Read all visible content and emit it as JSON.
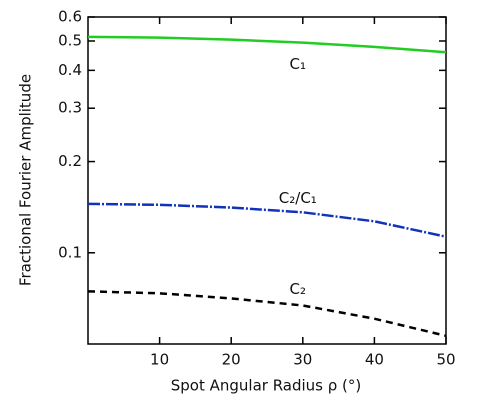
{
  "chart_data": {
    "type": "line",
    "xlabel": "Spot Angular Radius ρ (°)",
    "ylabel": "Fractional Fourier Amplitude",
    "x": [
      0,
      10,
      20,
      30,
      40,
      50
    ],
    "series": [
      {
        "name": "C₁",
        "color": "#22cc22",
        "dash": "solid",
        "values": [
          0.516,
          0.513,
          0.505,
          0.494,
          0.478,
          0.459
        ]
      },
      {
        "name": "C₂/C₁",
        "color": "#1133bb",
        "dash": "dashdot",
        "values": [
          0.145,
          0.144,
          0.141,
          0.136,
          0.127,
          0.113
        ]
      },
      {
        "name": "C₂",
        "color": "#000000",
        "dash": "dashed",
        "values": [
          0.0746,
          0.0735,
          0.0707,
          0.067,
          0.0606,
          0.0532
        ]
      }
    ],
    "xlim": [
      0,
      50
    ],
    "xticks": [
      10,
      20,
      30,
      40,
      50
    ],
    "ylim": [
      0.05,
      0.6
    ],
    "yticks": [
      0.1,
      0.2,
      0.3,
      0.4,
      0.5,
      0.6
    ],
    "ylog": true
  }
}
